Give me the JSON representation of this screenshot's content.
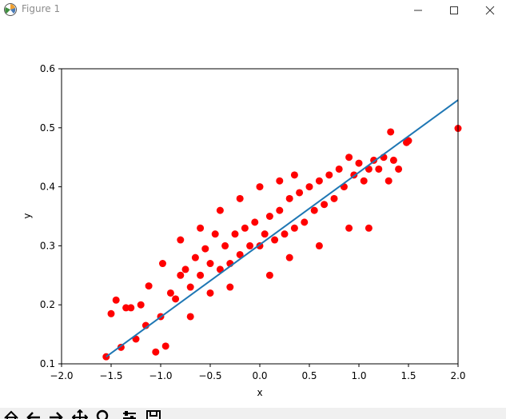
{
  "window": {
    "title": "Figure 1",
    "icon": "matplotlib-icon",
    "controls": [
      "minimize-icon",
      "maximize-icon",
      "close-icon"
    ]
  },
  "toolbar": {
    "buttons": [
      "home-icon",
      "back-arrow-icon",
      "forward-arrow-icon",
      "pan-icon",
      "zoom-icon",
      "subplots-icon",
      "save-icon"
    ]
  },
  "colors": {
    "scatter": "#ff0000",
    "line": "#1f77b4",
    "axes": "#000000"
  },
  "chart_data": {
    "type": "scatter",
    "title": "",
    "xlabel": "x",
    "ylabel": "y",
    "xlim": [
      -2.0,
      2.0
    ],
    "ylim": [
      0.1,
      0.6
    ],
    "xticks": [
      "−2.0",
      "−1.5",
      "−1.0",
      "−0.5",
      "0.0",
      "0.5",
      "1.0",
      "1.5",
      "2.0"
    ],
    "yticks": [
      "0.1",
      "0.2",
      "0.3",
      "0.4",
      "0.5",
      "0.6"
    ],
    "grid": false,
    "series": [
      {
        "kind": "scatter",
        "points": [
          [
            -1.55,
            0.112
          ],
          [
            -1.5,
            0.185
          ],
          [
            -1.45,
            0.208
          ],
          [
            -1.4,
            0.128
          ],
          [
            -1.35,
            0.195
          ],
          [
            -1.3,
            0.195
          ],
          [
            -1.25,
            0.142
          ],
          [
            -1.2,
            0.2
          ],
          [
            -1.15,
            0.165
          ],
          [
            -1.12,
            0.232
          ],
          [
            -1.05,
            0.12
          ],
          [
            -1.0,
            0.18
          ],
          [
            -0.98,
            0.27
          ],
          [
            -0.95,
            0.13
          ],
          [
            -0.9,
            0.22
          ],
          [
            -0.85,
            0.21
          ],
          [
            -0.8,
            0.25
          ],
          [
            -0.75,
            0.26
          ],
          [
            -0.7,
            0.23
          ],
          [
            -0.65,
            0.28
          ],
          [
            -0.6,
            0.25
          ],
          [
            -0.55,
            0.295
          ],
          [
            -0.5,
            0.27
          ],
          [
            -0.45,
            0.32
          ],
          [
            -0.4,
            0.26
          ],
          [
            -0.35,
            0.3
          ],
          [
            -0.3,
            0.27
          ],
          [
            -0.25,
            0.32
          ],
          [
            -0.2,
            0.285
          ],
          [
            -0.15,
            0.33
          ],
          [
            -0.1,
            0.3
          ],
          [
            -0.05,
            0.34
          ],
          [
            0.0,
            0.3
          ],
          [
            0.05,
            0.32
          ],
          [
            0.1,
            0.35
          ],
          [
            0.15,
            0.31
          ],
          [
            0.2,
            0.36
          ],
          [
            0.25,
            0.32
          ],
          [
            0.3,
            0.38
          ],
          [
            0.35,
            0.33
          ],
          [
            0.4,
            0.39
          ],
          [
            0.45,
            0.34
          ],
          [
            0.5,
            0.4
          ],
          [
            0.55,
            0.36
          ],
          [
            0.6,
            0.41
          ],
          [
            0.65,
            0.37
          ],
          [
            0.7,
            0.42
          ],
          [
            0.75,
            0.38
          ],
          [
            0.8,
            0.43
          ],
          [
            0.85,
            0.4
          ],
          [
            0.9,
            0.45
          ],
          [
            0.95,
            0.42
          ],
          [
            1.0,
            0.44
          ],
          [
            1.05,
            0.41
          ],
          [
            1.1,
            0.43
          ],
          [
            1.15,
            0.445
          ],
          [
            1.2,
            0.43
          ],
          [
            1.25,
            0.45
          ],
          [
            1.3,
            0.41
          ],
          [
            1.32,
            0.493
          ],
          [
            1.35,
            0.445
          ],
          [
            1.4,
            0.43
          ],
          [
            1.48,
            0.475
          ],
          [
            1.5,
            0.478
          ],
          [
            2.0,
            0.499
          ],
          [
            -0.7,
            0.18
          ],
          [
            -0.5,
            0.22
          ],
          [
            -0.3,
            0.23
          ],
          [
            0.1,
            0.25
          ],
          [
            0.3,
            0.28
          ],
          [
            0.6,
            0.3
          ],
          [
            0.9,
            0.33
          ],
          [
            1.1,
            0.33
          ],
          [
            -0.8,
            0.31
          ],
          [
            -0.6,
            0.33
          ],
          [
            -0.2,
            0.38
          ],
          [
            0.0,
            0.4
          ],
          [
            0.2,
            0.41
          ],
          [
            0.35,
            0.42
          ],
          [
            -0.4,
            0.36
          ]
        ]
      },
      {
        "kind": "line",
        "x": [
          -1.55,
          2.0
        ],
        "y": [
          0.112,
          0.547
        ]
      }
    ]
  }
}
